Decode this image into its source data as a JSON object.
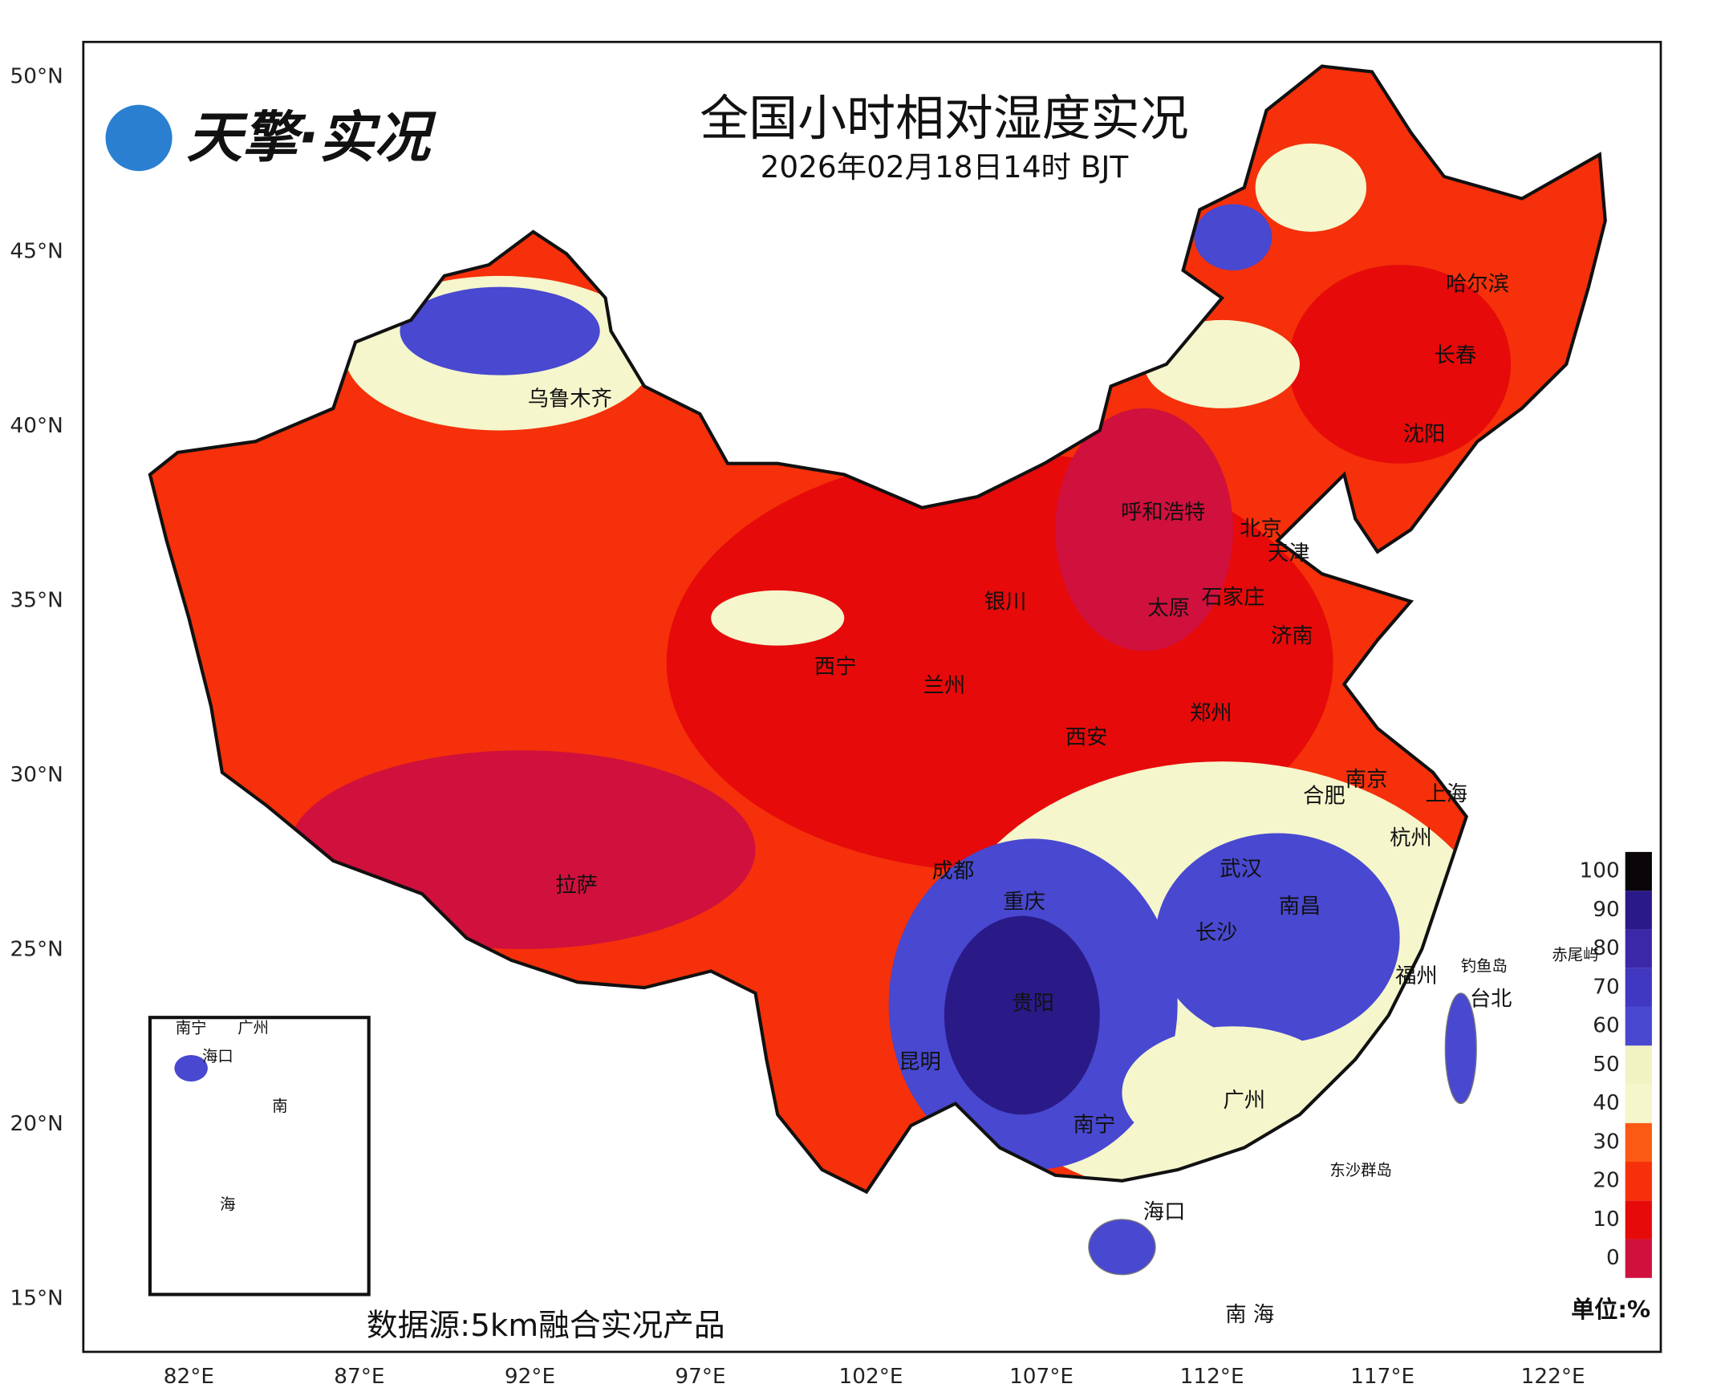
{
  "header": {
    "title": "全国小时相对湿度实况",
    "subtitle": "2026年02月18日14时 BJT",
    "logo": "天擎·实况",
    "source": "数据源:5km融合实况产品",
    "unit": "单位:%"
  },
  "axes": {
    "lat_ticks": [
      {
        "value": 50,
        "label": "50°N"
      },
      {
        "value": 45,
        "label": "45°N"
      },
      {
        "value": 40,
        "label": "40°N"
      },
      {
        "value": 35,
        "label": "35°N"
      },
      {
        "value": 30,
        "label": "30°N"
      },
      {
        "value": 25,
        "label": "25°N"
      },
      {
        "value": 20,
        "label": "20°N"
      },
      {
        "value": 15,
        "label": "15°N"
      }
    ],
    "lon_ticks": [
      {
        "value": 82,
        "label": "82°E"
      },
      {
        "value": 87,
        "label": "87°E"
      },
      {
        "value": 92,
        "label": "92°E"
      },
      {
        "value": 97,
        "label": "97°E"
      },
      {
        "value": 102,
        "label": "102°E"
      },
      {
        "value": 107,
        "label": "107°E"
      },
      {
        "value": 112,
        "label": "112°E"
      },
      {
        "value": 117,
        "label": "117°E"
      },
      {
        "value": 122,
        "label": "122°E"
      }
    ]
  },
  "legend": {
    "levels": [
      0,
      10,
      20,
      30,
      40,
      50,
      60,
      70,
      80,
      90,
      100
    ],
    "colors": [
      "#d0103d",
      "#e60a0a",
      "#f5300a",
      "#fb5a14",
      "#f5f6cc",
      "#f1f3c2",
      "#4848d0",
      "#4038c0",
      "#3a28a8",
      "#2a1a88",
      "#0a0508"
    ]
  },
  "cities": [
    "乌鲁木齐",
    "哈尔滨",
    "长春",
    "沈阳",
    "呼和浩特",
    "北京",
    "天津",
    "银川",
    "太原",
    "石家庄",
    "济南",
    "西宁",
    "兰州",
    "郑州",
    "西安",
    "南京",
    "合肥",
    "上海",
    "杭州",
    "成都",
    "武汉",
    "重庆",
    "南昌",
    "长沙",
    "拉萨",
    "福州",
    "台北",
    "贵阳",
    "昆明",
    "广州",
    "南宁",
    "海口"
  ],
  "islands": [
    "钓鱼岛",
    "赤尾屿",
    "东沙群岛"
  ],
  "sea_label": "南 海",
  "inset": {
    "labels": [
      "南宁",
      "广州",
      "海口",
      "南",
      "海"
    ]
  }
}
